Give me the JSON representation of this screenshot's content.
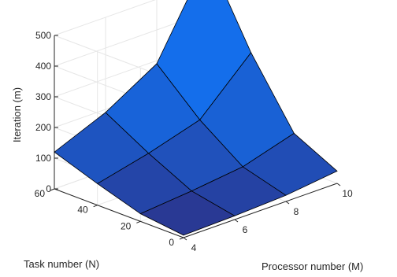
{
  "chart_data": {
    "type": "surface",
    "title": "",
    "xlabel": "Processor number (M)",
    "ylabel": "Task number (N)",
    "zlabel": "Iteration (m)",
    "x": [
      4,
      6,
      8,
      10
    ],
    "y": [
      0,
      20,
      40,
      60
    ],
    "xlim": [
      4,
      10
    ],
    "ylim": [
      0,
      60
    ],
    "zlim": [
      0,
      500
    ],
    "xticks": [
      "4",
      "6",
      "8",
      "10"
    ],
    "yticks": [
      "0",
      "20",
      "40",
      "60"
    ],
    "zticks": [
      "0",
      "100",
      "200",
      "300",
      "400",
      "500"
    ],
    "z": [
      [
        8,
        12,
        20,
        40
      ],
      [
        25,
        40,
        60,
        110
      ],
      [
        70,
        110,
        160,
        320
      ],
      [
        120,
        190,
        290,
        580
      ]
    ],
    "grid": true
  }
}
